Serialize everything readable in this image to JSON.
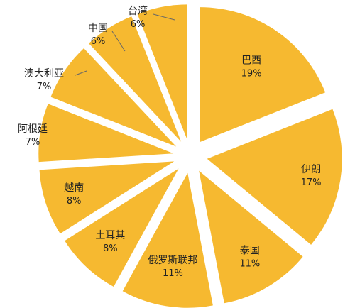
{
  "chart_data": {
    "type": "pie",
    "exploded": true,
    "start_angle_deg": 0,
    "direction": "clockwise",
    "fill_color": "#F6B930",
    "label_color": "#222222",
    "slices": [
      {
        "label": "巴西",
        "value": 19,
        "value_label": "19%"
      },
      {
        "label": "伊朗",
        "value": 17,
        "value_label": "17%"
      },
      {
        "label": "泰国",
        "value": 11,
        "value_label": "11%"
      },
      {
        "label": "俄罗斯联邦",
        "value": 11,
        "value_label": "11%"
      },
      {
        "label": "土耳其",
        "value": 8,
        "value_label": "8%"
      },
      {
        "label": "越南",
        "value": 8,
        "value_label": "8%"
      },
      {
        "label": "阿根廷",
        "value": 7,
        "value_label": "7%"
      },
      {
        "label": "澳大利亚",
        "value": 7,
        "value_label": "7%"
      },
      {
        "label": "中国",
        "value": 6,
        "value_label": "6%"
      },
      {
        "label": "台湾",
        "value": 6,
        "value_label": "6%"
      }
    ]
  }
}
